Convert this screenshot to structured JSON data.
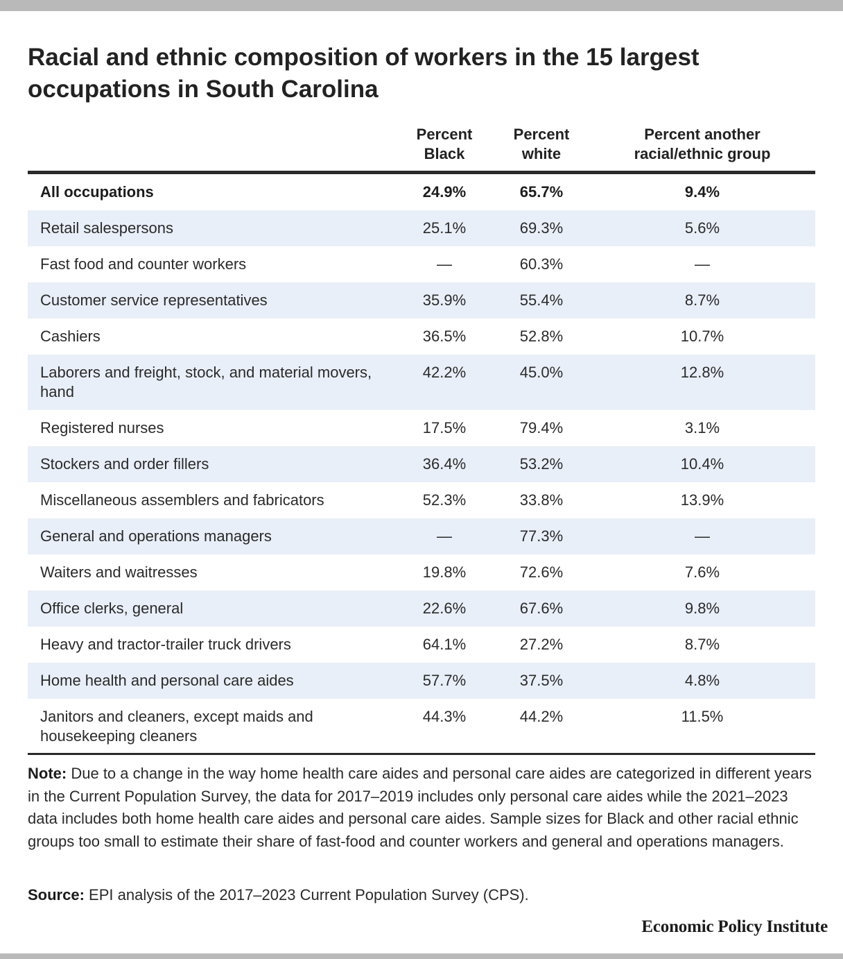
{
  "title": "Racial and ethnic composition of workers in the 15 largest occupations in South Carolina",
  "table": {
    "columns": [
      "",
      "Percent Black",
      "Percent white",
      "Percent another racial/ethnic group"
    ],
    "header_lines": {
      "black": [
        "Percent",
        "Black"
      ],
      "white": [
        "Percent",
        "white"
      ],
      "other": [
        "Percent another",
        "racial/ethnic group"
      ]
    },
    "rows": [
      {
        "occupation": "All occupations",
        "black": "24.9%",
        "white": "65.7%",
        "other": "9.4%"
      },
      {
        "occupation": "Retail salespersons",
        "black": "25.1%",
        "white": "69.3%",
        "other": "5.6%"
      },
      {
        "occupation": "Fast food and counter workers",
        "black": "—",
        "white": "60.3%",
        "other": "—"
      },
      {
        "occupation": "Customer service representatives",
        "black": "35.9%",
        "white": "55.4%",
        "other": "8.7%"
      },
      {
        "occupation": "Cashiers",
        "black": "36.5%",
        "white": "52.8%",
        "other": "10.7%"
      },
      {
        "occupation": "Laborers and freight, stock, and material movers, hand",
        "black": "42.2%",
        "white": "45.0%",
        "other": "12.8%"
      },
      {
        "occupation": "Registered nurses",
        "black": "17.5%",
        "white": "79.4%",
        "other": "3.1%"
      },
      {
        "occupation": "Stockers and order fillers",
        "black": "36.4%",
        "white": "53.2%",
        "other": "10.4%"
      },
      {
        "occupation": "Miscellaneous assemblers and fabricators",
        "black": "52.3%",
        "white": "33.8%",
        "other": "13.9%"
      },
      {
        "occupation": "General and operations managers",
        "black": "—",
        "white": "77.3%",
        "other": "—"
      },
      {
        "occupation": "Waiters and waitresses",
        "black": "19.8%",
        "white": "72.6%",
        "other": "7.6%"
      },
      {
        "occupation": "Office clerks, general",
        "black": "22.6%",
        "white": "67.6%",
        "other": "9.8%"
      },
      {
        "occupation": "Heavy and tractor-trailer truck drivers",
        "black": "64.1%",
        "white": "27.2%",
        "other": "8.7%"
      },
      {
        "occupation": "Home health and personal care aides",
        "black": "57.7%",
        "white": "37.5%",
        "other": "4.8%"
      },
      {
        "occupation": "Janitors and cleaners, except maids and housekeeping cleaners",
        "black": "44.3%",
        "white": "44.2%",
        "other": "11.5%"
      }
    ]
  },
  "note": {
    "label": "Note:",
    "text": "Due to a change in the way home health care aides and personal care aides are categorized in different years in the Current Population Survey, the data for 2017–2019 includes only personal care aides while the 2021–2023 data includes both home health care aides and personal care aides. Sample sizes for Black and other racial ethnic groups too small to estimate their share of fast-food and counter workers and general and operations managers."
  },
  "source": {
    "label": "Source:",
    "text": "EPI analysis of the 2017–2023 Current Population Survey (CPS)."
  },
  "brand": "Economic Policy Institute",
  "colors": {
    "frame_bar": "#b9b9b9",
    "row_shade": "#e9eff8",
    "rule": "#2a2a2a"
  },
  "chart_data": {
    "type": "table",
    "title": "Racial and ethnic composition of workers in the 15 largest occupations in South Carolina",
    "columns": [
      "Percent Black",
      "Percent white",
      "Percent another racial/ethnic group"
    ],
    "categories": [
      "All occupations",
      "Retail salespersons",
      "Fast food and counter workers",
      "Customer service representatives",
      "Cashiers",
      "Laborers and freight, stock, and material movers, hand",
      "Registered nurses",
      "Stockers and order fillers",
      "Miscellaneous assemblers and fabricators",
      "General and operations managers",
      "Waiters and waitresses",
      "Office clerks, general",
      "Heavy and tractor-trailer truck drivers",
      "Home health and personal care aides",
      "Janitors and cleaners, except maids and housekeeping cleaners"
    ],
    "series": [
      {
        "name": "Percent Black",
        "values": [
          24.9,
          25.1,
          null,
          35.9,
          36.5,
          42.2,
          17.5,
          36.4,
          52.3,
          null,
          19.8,
          22.6,
          64.1,
          57.7,
          44.3
        ]
      },
      {
        "name": "Percent white",
        "values": [
          65.7,
          69.3,
          60.3,
          55.4,
          52.8,
          45.0,
          79.4,
          53.2,
          33.8,
          77.3,
          72.6,
          67.6,
          27.2,
          37.5,
          44.2
        ]
      },
      {
        "name": "Percent another racial/ethnic group",
        "values": [
          9.4,
          5.6,
          null,
          8.7,
          10.7,
          12.8,
          3.1,
          10.4,
          13.9,
          null,
          7.6,
          9.8,
          8.7,
          4.8,
          11.5
        ]
      }
    ]
  }
}
